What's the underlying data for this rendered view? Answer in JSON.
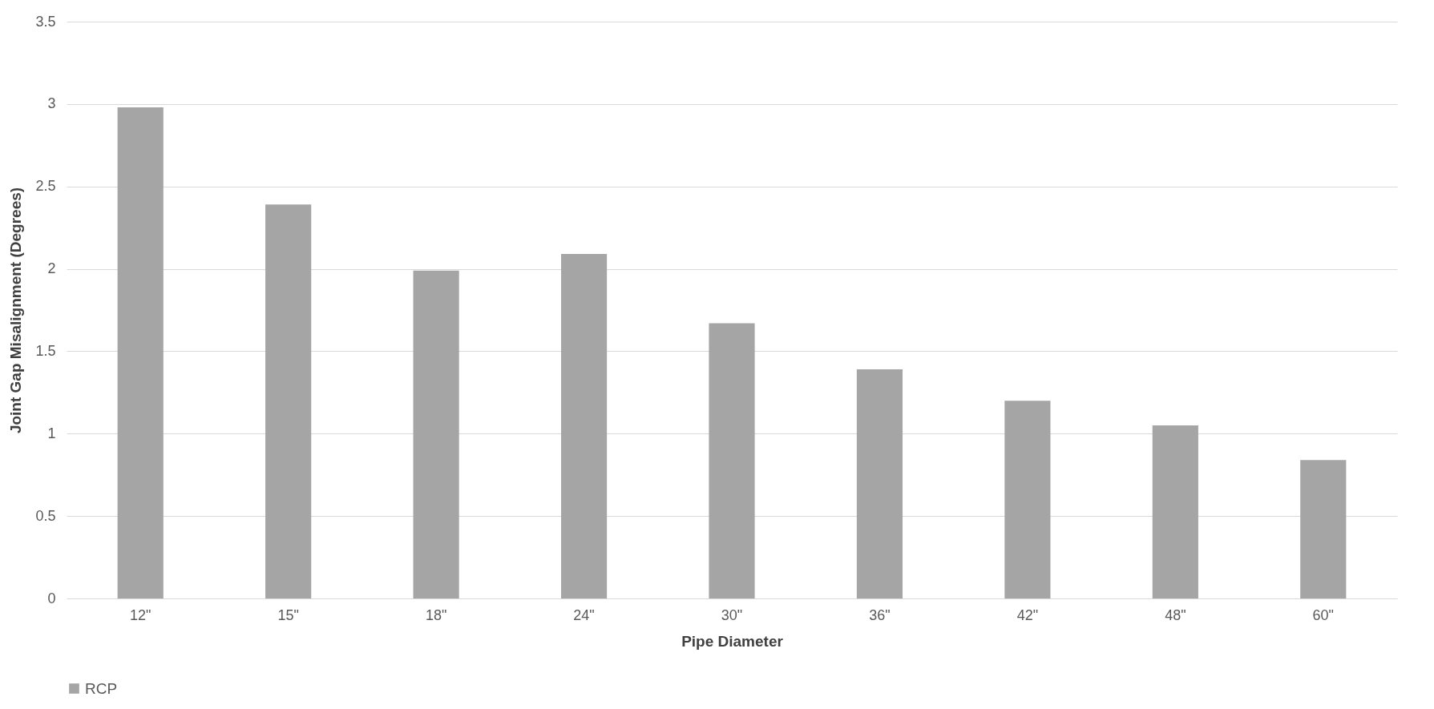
{
  "chart_data": {
    "type": "bar",
    "xlabel": "Pipe Diameter",
    "ylabel": "Joint Gap Misalignment (Degrees)",
    "categories": [
      "12\"",
      "15\"",
      "18\"",
      "24\"",
      "30\"",
      "36\"",
      "42\"",
      "48\"",
      "60\""
    ],
    "series": [
      {
        "name": "RCP",
        "color": "#a5a5a5",
        "values": [
          2.98,
          2.39,
          1.99,
          2.09,
          1.67,
          1.39,
          1.2,
          1.05,
          0.84
        ]
      }
    ],
    "ylim": [
      0,
      3.5
    ],
    "yticks": [
      0,
      0.5,
      1,
      1.5,
      2,
      2.5,
      3,
      3.5
    ],
    "grid": "y",
    "legend": "bottom"
  }
}
